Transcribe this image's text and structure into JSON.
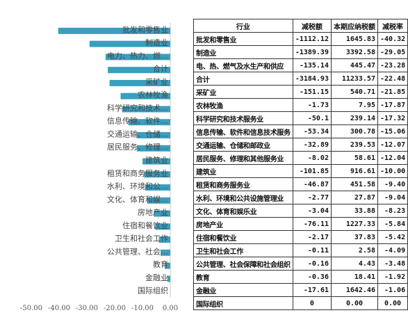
{
  "chart_data": {
    "type": "bar",
    "orientation": "horizontal",
    "categories": [
      "批发和零售业",
      "制造业",
      "电力、热力、燃…",
      "合计",
      "采矿业",
      "农林牧渔",
      "科学研究和技术…",
      "信息传输、软件…",
      "交通运输、仓储…",
      "居民服务、修理…",
      "建筑业",
      "租赁和商务服务业",
      "水利、环境和公…",
      "文化、体育和娱…",
      "房地产业",
      "住宿和餐饮业",
      "卫生和社会工作",
      "公共管理、社会…",
      "教育",
      "金融业",
      "国际组织"
    ],
    "values": [
      -40.32,
      -29.05,
      -23.28,
      -22.48,
      -21.85,
      -17.87,
      -17.32,
      -15.06,
      -12.07,
      -12.04,
      -10.0,
      -9.4,
      -9.04,
      -8.23,
      -5.84,
      -5.42,
      -4.09,
      -3.48,
      -1.92,
      -1.06,
      0.0
    ],
    "xlim": [
      -50,
      0
    ],
    "x_ticks": [
      "-50.00",
      "-40.00",
      "-30.00",
      "-20.00",
      "-10.00",
      "0.00"
    ],
    "color": "#3a9fbf",
    "grid": false
  },
  "table": {
    "headers": [
      "行业",
      "减税额",
      "本期应纳税额",
      "减税率"
    ],
    "rows": [
      [
        "批发和零售业",
        "-1112.12",
        "1645.83",
        "-40.32"
      ],
      [
        "制造业",
        "-1389.39",
        "3392.58",
        "-29.05"
      ],
      [
        "电、热、燃气及水生产和供应",
        "-135.14",
        "445.47",
        "-23.28"
      ],
      [
        "合计",
        "-3184.93",
        "11233.57",
        "-22.48"
      ],
      [
        "采矿业",
        "-151.15",
        "540.71",
        "-21.85"
      ],
      [
        "农林牧渔",
        "-1.73",
        "7.95",
        "-17.87"
      ],
      [
        "科学研究和技术服务业",
        "-50.1",
        "239.14",
        "-17.32"
      ],
      [
        "信息传输、软件和信息技术服务",
        "-53.34",
        "300.78",
        "-15.06"
      ],
      [
        "交通运输、仓储和邮政业",
        "-32.89",
        "239.53",
        "-12.07"
      ],
      [
        "居民服务、修理和其他服务业",
        "-8.02",
        "58.61",
        "-12.04"
      ],
      [
        "建筑业",
        "-101.85",
        "916.61",
        "-10.00"
      ],
      [
        "租赁和商务服务业",
        "-46.87",
        "451.58",
        "-9.40"
      ],
      [
        "水利、环境和公共设施管理业",
        "-2.77",
        "27.87",
        "-9.04"
      ],
      [
        "文化、体育和娱乐业",
        "-3.04",
        "33.88",
        "-8.23"
      ],
      [
        "房地产业",
        "-76.11",
        "1227.33",
        "-5.84"
      ],
      [
        "住宿和餐饮业",
        "-2.17",
        "37.83",
        "-5.42"
      ],
      [
        "卫生和社会工作",
        "-0.11",
        "2.58",
        "-4.09"
      ],
      [
        "公共管理、社会保障和社会组织",
        "-0.16",
        "4.43",
        "-3.48"
      ],
      [
        "教育",
        "-0.36",
        "18.41",
        "-1.92"
      ],
      [
        "金融业",
        "-17.61",
        "1642.46",
        "-1.06"
      ],
      [
        "国际组织",
        "0",
        "0.00",
        "0.00"
      ]
    ]
  }
}
